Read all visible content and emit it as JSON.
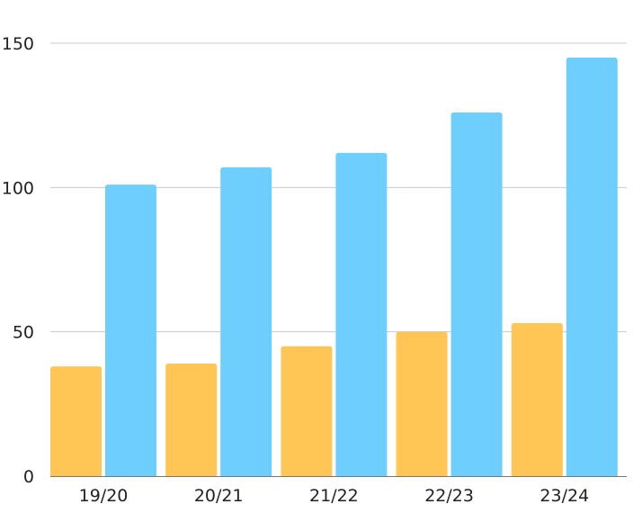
{
  "chart_data": {
    "type": "bar",
    "title": "",
    "xlabel": "",
    "ylabel": "",
    "categories": [
      "19/20",
      "20/21",
      "21/22",
      "22/23",
      "23/24"
    ],
    "series": [
      {
        "values": [
          38,
          39,
          45,
          50,
          53
        ],
        "color": "#FFC555"
      },
      {
        "values": [
          101,
          107,
          112,
          126,
          145
        ],
        "color": "#6ECFFF"
      }
    ],
    "ylim": [
      0,
      150
    ],
    "yticks": [
      0,
      50,
      100,
      150
    ],
    "grid": true,
    "legend": "none"
  }
}
